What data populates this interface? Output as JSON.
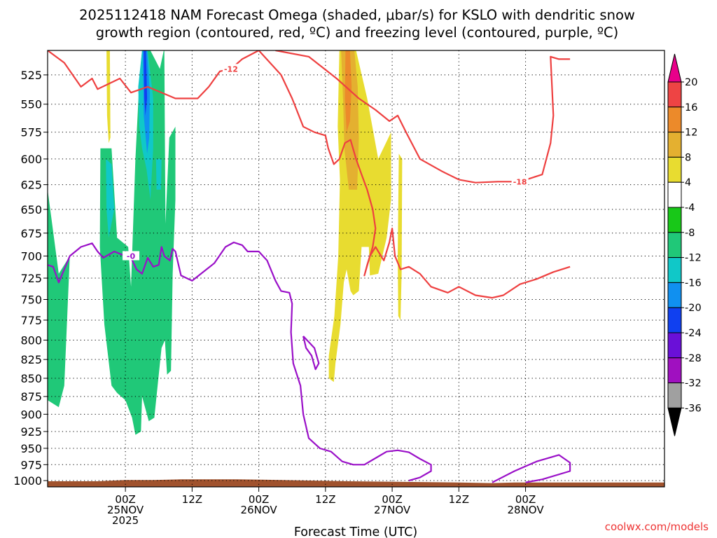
{
  "page": {
    "title_line1": "2025112418 NAM Forecast Omega (shaded, μbar/s) for KSLO with dendritic snow",
    "title_line2": "growth region (contoured, red, ºC) and freezing level (contoured, purple, ºC)",
    "credit": "coolwx.com/models"
  },
  "chart_data": {
    "type": "heatmap",
    "xlabel": "Forecast Time (UTC)",
    "ylabel": "",
    "x_range_hours": [
      -14,
      97
    ],
    "y_log_scale": true,
    "ylim_hpa": [
      1010,
      505
    ],
    "grid": "dotted",
    "y_ticks": [
      525,
      550,
      575,
      600,
      625,
      650,
      675,
      700,
      725,
      750,
      775,
      800,
      825,
      850,
      875,
      900,
      925,
      950,
      975,
      1000
    ],
    "x_ticks": [
      {
        "hour": 0,
        "lines": [
          "00Z",
          "25NOV",
          "2025"
        ]
      },
      {
        "hour": 12,
        "lines": [
          "12Z"
        ]
      },
      {
        "hour": 24,
        "lines": [
          "00Z",
          "26NOV"
        ]
      },
      {
        "hour": 36,
        "lines": [
          "12Z"
        ]
      },
      {
        "hour": 48,
        "lines": [
          "00Z",
          "27NOV"
        ]
      },
      {
        "hour": 60,
        "lines": [
          "12Z"
        ]
      },
      {
        "hour": 72,
        "lines": [
          "00Z",
          "28NOV"
        ]
      }
    ],
    "colorbar": {
      "labels": [
        "20",
        "16",
        "12",
        "8",
        "4",
        "-4",
        "-8",
        "-12",
        "-16",
        "-20",
        "-24",
        "-28",
        "-32",
        "-36"
      ],
      "levels": [
        20,
        16,
        12,
        8,
        4,
        -4,
        -8,
        -12,
        -16,
        -20,
        -24,
        -28,
        -32,
        -36
      ],
      "colors": {
        "above_20": "#e8008a",
        "16_20": "#ee4444",
        "12_16": "#ec8a2a",
        "8_12": "#e4b030",
        "4_8": "#e8dc30",
        "-4_4": "#ffffff",
        "-8_-4": "#18c818",
        "-12_-8": "#20c878",
        "-16_-12": "#10c8c8",
        "-20_-16": "#1090f0",
        "-24_-20": "#1040f0",
        "-28_-24": "#6a10d8",
        "-32_-28": "#a010c0",
        "-36_-32": "#a0a0a0",
        "below_-36": "#000000"
      }
    },
    "omega_areas": [
      {
        "value": -8,
        "pts": [
          [
            -14,
            630
          ],
          [
            -12,
            720
          ],
          [
            -10,
            700
          ],
          [
            -11,
            860
          ],
          [
            -12,
            890
          ],
          [
            -14,
            880
          ]
        ]
      },
      {
        "value": -8,
        "pts": [
          [
            -4.5,
            590
          ],
          [
            -2.5,
            590
          ],
          [
            -1.5,
            680
          ],
          [
            0.5,
            690
          ],
          [
            1,
            735
          ],
          [
            1.8,
            600
          ],
          [
            2.5,
            530
          ],
          [
            3,
            505
          ],
          [
            4.5,
            505
          ],
          [
            6.2,
            520
          ],
          [
            6.9,
            505
          ],
          [
            7,
            505
          ],
          [
            7.2,
            665
          ],
          [
            7.9,
            580
          ],
          [
            9,
            570
          ],
          [
            9,
            640
          ],
          [
            8.5,
            720
          ],
          [
            8.2,
            840
          ],
          [
            7.5,
            845
          ],
          [
            7.1,
            800
          ],
          [
            6.5,
            810
          ],
          [
            5.2,
            905
          ],
          [
            4.2,
            910
          ],
          [
            3,
            875
          ],
          [
            2.8,
            925
          ],
          [
            1.8,
            930
          ],
          [
            1.2,
            905
          ],
          [
            0,
            880
          ],
          [
            -1.5,
            870
          ],
          [
            -2.5,
            860
          ],
          [
            -3.8,
            780
          ],
          [
            -4.6,
            690
          ]
        ]
      },
      {
        "value": -12,
        "pts": [
          [
            2.3,
            535
          ],
          [
            3,
            505
          ],
          [
            4,
            505
          ],
          [
            5,
            545
          ],
          [
            5,
            590
          ],
          [
            4.5,
            640
          ],
          [
            3.8,
            610
          ],
          [
            3,
            590
          ],
          [
            2.5,
            570
          ]
        ]
      },
      {
        "value": -12,
        "pts": [
          [
            -3.5,
            600
          ],
          [
            -2.5,
            605
          ],
          [
            -2,
            650
          ],
          [
            -3,
            680
          ],
          [
            -3.4,
            650
          ]
        ]
      },
      {
        "value": -12,
        "pts": [
          [
            5.5,
            600
          ],
          [
            6.5,
            600
          ],
          [
            6.4,
            630
          ],
          [
            5.6,
            630
          ]
        ]
      },
      {
        "value": -16,
        "pts": [
          [
            3.1,
            505
          ],
          [
            3.9,
            505
          ],
          [
            4.4,
            540
          ],
          [
            4.3,
            580
          ],
          [
            3.9,
            595
          ],
          [
            3.3,
            560
          ]
        ]
      },
      {
        "value": -20,
        "pts": [
          [
            3.3,
            505
          ],
          [
            3.7,
            505
          ],
          [
            3.9,
            545
          ],
          [
            3.6,
            560
          ],
          [
            3.4,
            545
          ]
        ]
      },
      {
        "value": 4,
        "pts": [
          [
            -3.4,
            505
          ],
          [
            -2.8,
            505
          ],
          [
            -2.7,
            580
          ],
          [
            -3,
            585
          ],
          [
            -3.3,
            560
          ]
        ]
      },
      {
        "value": 4,
        "pts": [
          [
            38.5,
            505
          ],
          [
            41.5,
            505
          ],
          [
            43.5,
            545
          ],
          [
            45.5,
            600
          ],
          [
            47.8,
            575
          ],
          [
            47.8,
            640
          ],
          [
            47,
            680
          ],
          [
            45.5,
            720
          ],
          [
            44,
            722
          ],
          [
            43.8,
            690
          ],
          [
            42.5,
            690
          ],
          [
            42,
            740
          ],
          [
            41,
            745
          ],
          [
            40.5,
            740
          ],
          [
            39.8,
            715
          ],
          [
            39.3,
            730
          ],
          [
            38.7,
            780
          ],
          [
            37.8,
            830
          ],
          [
            37.5,
            855
          ],
          [
            36.6,
            850
          ],
          [
            36.6,
            820
          ],
          [
            37.6,
            770
          ],
          [
            38.3,
            700
          ],
          [
            38.6,
            620
          ],
          [
            38.2,
            570
          ]
        ]
      },
      {
        "value": 4,
        "pts": [
          [
            49.2,
            595
          ],
          [
            49.8,
            600
          ],
          [
            49.7,
            720
          ],
          [
            49.5,
            775
          ],
          [
            49.1,
            770
          ],
          [
            49,
            700
          ]
        ]
      },
      {
        "value": 8,
        "pts": [
          [
            38.8,
            505
          ],
          [
            41.2,
            505
          ],
          [
            41.8,
            535
          ],
          [
            42,
            580
          ],
          [
            41.7,
            630
          ],
          [
            40.2,
            630
          ],
          [
            39.4,
            590
          ],
          [
            39.2,
            550
          ]
        ]
      },
      {
        "value": 12,
        "pts": [
          [
            39.6,
            505
          ],
          [
            40.4,
            505
          ],
          [
            40.7,
            535
          ],
          [
            40.4,
            565
          ],
          [
            39.8,
            575
          ],
          [
            39.5,
            545
          ]
        ]
      }
    ],
    "ground": {
      "top_hpa": [
        1001,
        1001,
        999,
        999,
        998,
        998,
        999,
        1000,
        1001,
        1002,
        1003,
        1004,
        1003,
        1003
      ],
      "hours": [
        -14,
        -5,
        0,
        5,
        10,
        20,
        28,
        34,
        40,
        50,
        60,
        66,
        70,
        97
      ]
    },
    "red_contours": [
      {
        "label": "-12",
        "label_at": [
          19,
          520
        ],
        "pts": [
          [
            -14,
            505
          ],
          [
            -11,
            515
          ],
          [
            -8,
            535
          ],
          [
            -6,
            528
          ],
          [
            -5,
            537
          ],
          [
            -1,
            528
          ],
          [
            1,
            540
          ],
          [
            4,
            535
          ],
          [
            9,
            545
          ],
          [
            13,
            545
          ],
          [
            15,
            535
          ],
          [
            17,
            522
          ],
          [
            19,
            520
          ],
          [
            21,
            512
          ],
          [
            24,
            505
          ],
          [
            28,
            525
          ],
          [
            30,
            545
          ],
          [
            32,
            570
          ],
          [
            34,
            575
          ],
          [
            36,
            578
          ],
          [
            36.5,
            590
          ],
          [
            37.5,
            605
          ],
          [
            38.5,
            600
          ],
          [
            39.5,
            585
          ],
          [
            40.5,
            582
          ],
          [
            41.5,
            600
          ],
          [
            42.5,
            615
          ],
          [
            43.5,
            630
          ],
          [
            44.5,
            650
          ],
          [
            45,
            670
          ],
          [
            44.5,
            690
          ],
          [
            43.5,
            710
          ],
          [
            43,
            722
          ],
          [
            44,
            700
          ],
          [
            45,
            690
          ],
          [
            46.5,
            705
          ],
          [
            47.5,
            685
          ],
          [
            48,
            670
          ],
          [
            48.5,
            700
          ],
          [
            49.5,
            715
          ],
          [
            51,
            712
          ],
          [
            53,
            720
          ],
          [
            55,
            735
          ],
          [
            58,
            742
          ],
          [
            60,
            735
          ],
          [
            63,
            745
          ],
          [
            66,
            748
          ],
          [
            68,
            745
          ],
          [
            71,
            732
          ],
          [
            74,
            726
          ],
          [
            77,
            718
          ],
          [
            80,
            712
          ]
        ]
      },
      {
        "label": "-18",
        "label_at": [
          71,
          622
        ],
        "pts": [
          [
            27,
            505
          ],
          [
            33,
            510
          ],
          [
            38,
            528
          ],
          [
            42,
            545
          ],
          [
            45,
            555
          ],
          [
            47.5,
            565
          ],
          [
            49,
            560
          ],
          [
            50.5,
            575
          ],
          [
            53,
            600
          ],
          [
            57,
            612
          ],
          [
            60,
            620
          ],
          [
            63,
            623
          ],
          [
            67,
            622
          ],
          [
            71,
            622
          ],
          [
            75,
            615
          ],
          [
            76.5,
            585
          ],
          [
            77,
            560
          ],
          [
            76.5,
            510
          ],
          [
            78,
            512
          ],
          [
            80,
            512
          ]
        ]
      }
    ],
    "purple_contours": [
      {
        "label": "-0",
        "label_at": [
          1,
          700
        ],
        "pts": [
          [
            -14,
            710
          ],
          [
            -13,
            712
          ],
          [
            -12,
            730
          ],
          [
            -11,
            715
          ],
          [
            -10,
            700
          ],
          [
            -8,
            690
          ],
          [
            -6,
            686
          ],
          [
            -5,
            695
          ],
          [
            -4,
            702
          ],
          [
            -2,
            695
          ],
          [
            0,
            700
          ],
          [
            1,
            702
          ],
          [
            2,
            715
          ],
          [
            3,
            720
          ],
          [
            4,
            702
          ],
          [
            5,
            712
          ],
          [
            6,
            710
          ],
          [
            6.5,
            690
          ],
          [
            7,
            700
          ],
          [
            8,
            705
          ],
          [
            8.5,
            692
          ],
          [
            9,
            695
          ],
          [
            10,
            722
          ],
          [
            12,
            728
          ],
          [
            14,
            718
          ],
          [
            16,
            708
          ],
          [
            18,
            690
          ],
          [
            19.5,
            685
          ],
          [
            21,
            688
          ],
          [
            22,
            695
          ],
          [
            24,
            695
          ],
          [
            25.5,
            705
          ],
          [
            27,
            728
          ],
          [
            28,
            740
          ],
          [
            29.5,
            742
          ],
          [
            30,
            755
          ],
          [
            29.8,
            790
          ],
          [
            30.2,
            830
          ],
          [
            31.5,
            860
          ],
          [
            32,
            900
          ],
          [
            33,
            935
          ],
          [
            35,
            950
          ],
          [
            37,
            955
          ],
          [
            39,
            970
          ],
          [
            41,
            975
          ],
          [
            43,
            975
          ],
          [
            45,
            965
          ],
          [
            47,
            955
          ],
          [
            49,
            953
          ],
          [
            51,
            956
          ],
          [
            53,
            966
          ],
          [
            55,
            975
          ],
          [
            55,
            985
          ],
          [
            53,
            995
          ],
          [
            51,
            1000
          ]
        ]
      },
      {
        "label": "",
        "label_at": [],
        "pts": [
          [
            32,
            795
          ],
          [
            34,
            810
          ],
          [
            34.8,
            830
          ],
          [
            34.2,
            838
          ],
          [
            33.5,
            820
          ],
          [
            32.5,
            810
          ],
          [
            32,
            795
          ]
        ]
      },
      {
        "label": "",
        "label_at": [],
        "pts": [
          [
            66,
            1003
          ],
          [
            70,
            985
          ],
          [
            74,
            970
          ],
          [
            78,
            960
          ],
          [
            80,
            972
          ],
          [
            80,
            985
          ],
          [
            75,
            998
          ],
          [
            72,
            1003
          ]
        ]
      }
    ]
  }
}
